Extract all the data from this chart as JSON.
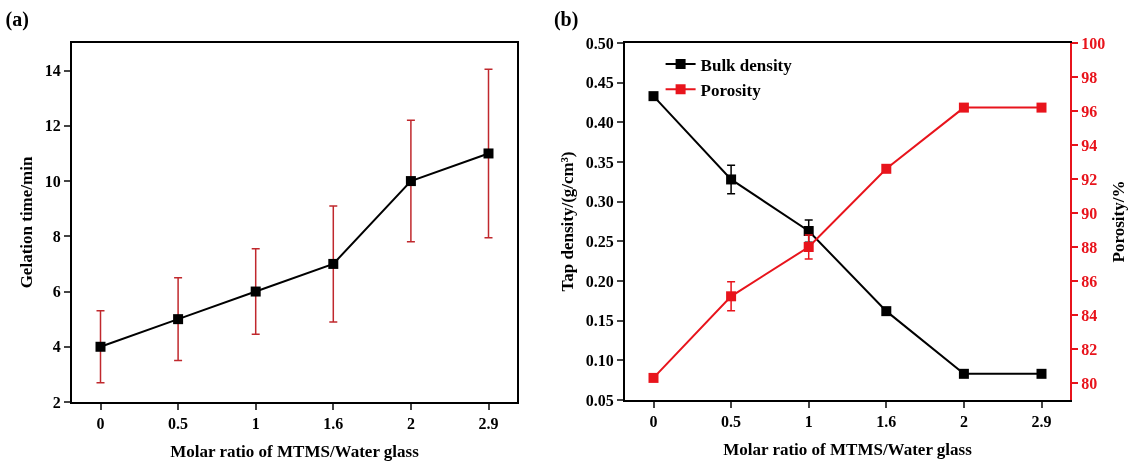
{
  "chart_data": [
    {
      "type": "line",
      "title": "(a)",
      "xlabel": "Molar ratio of MTMS/Water glass",
      "ylabel": "Gelation time/min",
      "categories": [
        "0",
        "0.5",
        "1",
        "1.6",
        "2",
        "2.9"
      ],
      "series": [
        {
          "color": "#000000",
          "values": [
            4,
            5,
            6,
            7,
            10,
            11
          ],
          "errors": [
            1.3,
            1.5,
            1.55,
            2.1,
            2.2,
            3.05
          ]
        }
      ],
      "ylim": [
        2,
        15
      ],
      "yticks": [
        2,
        4,
        6,
        8,
        10,
        12,
        14
      ],
      "grid": false,
      "legend": false,
      "marker": "square",
      "line_style": "solid"
    },
    {
      "type": "line",
      "title": "(b)",
      "xlabel": "Molar ratio of MTMS/Water glass",
      "ylabel": "Tap density/(g/cm³)",
      "y2label": "Porosity/%",
      "categories": [
        "0",
        "0.5",
        "1",
        "1.6",
        "2",
        "2.9"
      ],
      "series": [
        {
          "name": "Bulk density",
          "color": "#000000",
          "values": [
            0.433,
            0.328,
            0.263,
            0.162,
            0.083,
            0.083
          ],
          "errors": [
            null,
            0.018,
            0.014,
            null,
            null,
            null
          ]
        },
        {
          "name": "Porosity",
          "color": "#e8141c",
          "axis": "y2",
          "values": [
            80.3,
            85.1,
            88.0,
            92.6,
            96.2,
            96.2
          ],
          "errors": [
            null,
            0.85,
            0.7,
            null,
            null,
            null
          ]
        }
      ],
      "ylim": [
        0.05,
        0.5
      ],
      "yticks": [
        {
          "value": 0.05,
          "label": "0.05"
        },
        {
          "value": 0.1,
          "label": "0.10"
        },
        {
          "value": 0.15,
          "label": "0.15"
        },
        {
          "value": 0.2,
          "label": "0.20"
        },
        {
          "value": 0.25,
          "label": "0.25"
        },
        {
          "value": 0.3,
          "label": "0.30"
        },
        {
          "value": 0.35,
          "label": "0.35"
        },
        {
          "value": 0.4,
          "label": "0.40"
        },
        {
          "value": 0.45,
          "label": "0.45"
        },
        {
          "value": 0.5,
          "label": "0.50"
        }
      ],
      "y2lim": [
        79,
        100
      ],
      "y2ticks": [
        80,
        82,
        84,
        86,
        88,
        90,
        92,
        94,
        96,
        98,
        100
      ],
      "grid": false,
      "legend": "top left",
      "marker": "square",
      "line_style": "solid"
    }
  ]
}
